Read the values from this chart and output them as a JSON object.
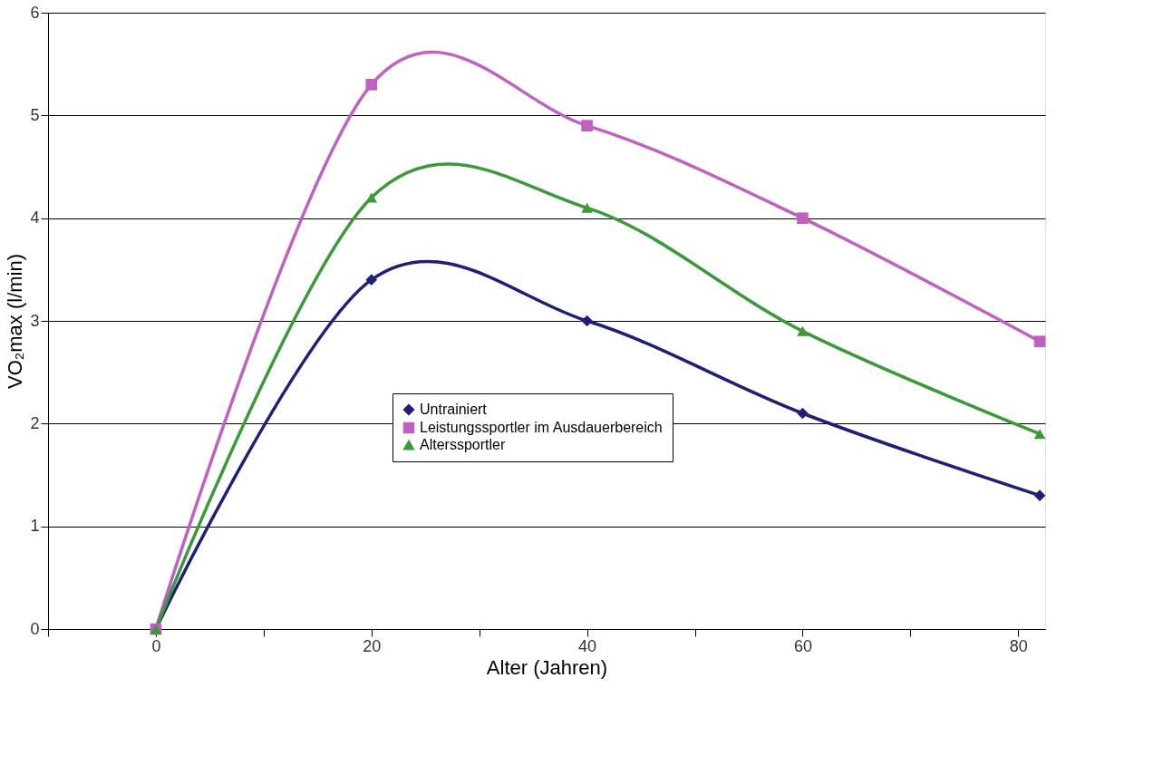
{
  "chart_data": {
    "type": "line",
    "xlabel": "Alter (Jahren)",
    "ylabel": "VO₂max (l/min)",
    "x": [
      0,
      20,
      40,
      60,
      82
    ],
    "series": [
      {
        "name": "Untrainiert",
        "color": "#1f1f78",
        "marker": "diamond",
        "values": [
          0,
          3.4,
          3.0,
          2.1,
          1.3
        ]
      },
      {
        "name": "Leistungssportler im Ausdauerbereich",
        "color": "#c060c0",
        "marker": "square",
        "values": [
          0,
          5.3,
          4.9,
          4.0,
          2.8
        ]
      },
      {
        "name": "Alterssportler",
        "color": "#3a9a3a",
        "marker": "triangle",
        "values": [
          0,
          4.2,
          4.1,
          2.9,
          1.9
        ]
      }
    ],
    "xlim": [
      -10,
      82.5
    ],
    "xticks": [
      {
        "value": -10,
        "label": null
      },
      0,
      {
        "value": 10,
        "label": null
      },
      20,
      {
        "value": 30,
        "label": null
      },
      40,
      {
        "value": 50,
        "label": null
      },
      60,
      {
        "value": 70,
        "label": null
      },
      80
    ],
    "ylim": [
      0,
      6
    ],
    "yticks": [
      0,
      1,
      2,
      3,
      4,
      5,
      6
    ],
    "grid": "y",
    "legend": "bottom",
    "line_style": "solid"
  }
}
